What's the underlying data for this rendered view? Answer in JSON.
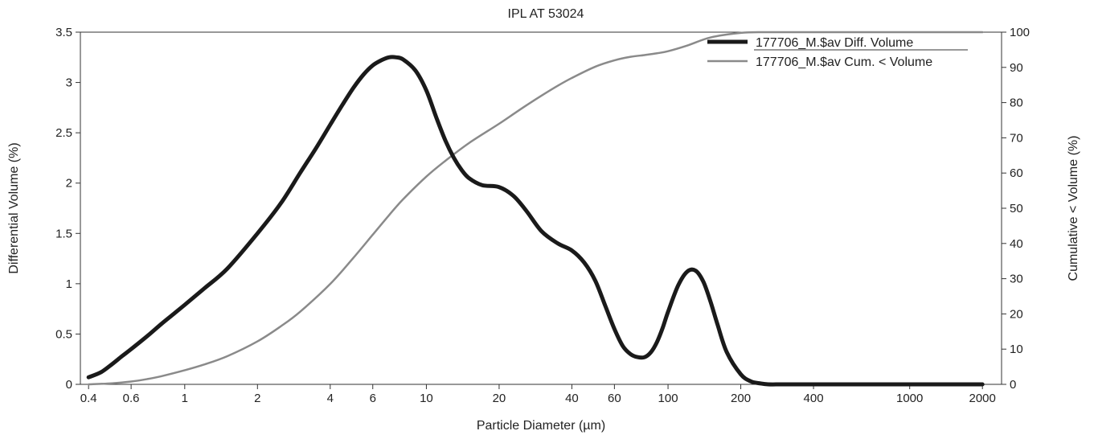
{
  "chart_data": {
    "type": "line",
    "title": "IPL AT 53024",
    "xlabel": "Particle Diameter (µm)",
    "ylabel": "Differential Volume (%)",
    "y2label": "Cumulative < Volume (%)",
    "xscale": "log",
    "xlim": [
      0.37,
      2400
    ],
    "ylim": [
      0,
      3.5
    ],
    "y2lim": [
      0,
      100
    ],
    "x_ticks": [
      0.4,
      0.6,
      1,
      2,
      4,
      6,
      10,
      20,
      40,
      60,
      100,
      200,
      400,
      1000,
      2000
    ],
    "x_tick_labels": [
      "0.4",
      "0.6",
      "1",
      "2",
      "4",
      "6",
      "10",
      "20",
      "40",
      "60",
      "100",
      "200",
      "400",
      "1000",
      "2000"
    ],
    "y_ticks": [
      0,
      0.5,
      1,
      1.5,
      2,
      2.5,
      3,
      3.5
    ],
    "y_tick_labels": [
      "0",
      "0.5",
      "1",
      "1.5",
      "2",
      "2.5",
      "3",
      "3.5"
    ],
    "y2_ticks": [
      0,
      10,
      20,
      30,
      40,
      50,
      60,
      70,
      80,
      90,
      100
    ],
    "y2_tick_labels": [
      "0",
      "10",
      "20",
      "30",
      "40",
      "50",
      "60",
      "70",
      "80",
      "90",
      "100"
    ],
    "legend_position": "top-right",
    "grid": false,
    "series": [
      {
        "name": "177706_M.$av Diff. Volume",
        "axis": "left",
        "color": "#1a1a1a",
        "x": [
          0.4,
          0.45,
          0.5,
          0.55,
          0.6,
          0.7,
          0.8,
          0.9,
          1.0,
          1.2,
          1.5,
          2.0,
          2.5,
          3.0,
          3.5,
          4.0,
          4.5,
          5.0,
          5.5,
          6.0,
          6.5,
          7.0,
          7.5,
          8.0,
          9.0,
          10.0,
          11.0,
          12.0,
          13.0,
          14.0,
          15.0,
          17.0,
          20.0,
          23.0,
          26.0,
          30.0,
          35.0,
          40.0,
          45.0,
          50.0,
          55.0,
          60.0,
          65.0,
          70.0,
          75.0,
          80.0,
          85.0,
          90.0,
          95.0,
          100.0,
          110.0,
          120.0,
          130.0,
          140.0,
          150.0,
          160.0,
          175.0,
          200.0,
          220.0,
          240.0,
          260.0,
          300.0,
          400.0,
          600.0,
          1000.0,
          1500.0,
          2000.0
        ],
        "values": [
          0.07,
          0.12,
          0.2,
          0.28,
          0.35,
          0.48,
          0.6,
          0.7,
          0.79,
          0.95,
          1.15,
          1.5,
          1.8,
          2.1,
          2.35,
          2.58,
          2.78,
          2.95,
          3.08,
          3.17,
          3.22,
          3.25,
          3.25,
          3.23,
          3.12,
          2.92,
          2.65,
          2.42,
          2.25,
          2.13,
          2.05,
          1.98,
          1.96,
          1.87,
          1.72,
          1.52,
          1.4,
          1.33,
          1.21,
          1.03,
          0.78,
          0.55,
          0.38,
          0.3,
          0.27,
          0.27,
          0.32,
          0.42,
          0.56,
          0.72,
          0.98,
          1.12,
          1.13,
          1.02,
          0.82,
          0.6,
          0.32,
          0.1,
          0.03,
          0.01,
          0.0,
          0.0,
          0.0,
          0.0,
          0.0,
          0.0,
          0.0
        ]
      },
      {
        "name": "177706_M.$av Cum. < Volume",
        "axis": "right",
        "color": "#8a8a8a",
        "x": [
          0.4,
          0.5,
          0.6,
          0.7,
          0.8,
          1.0,
          1.2,
          1.5,
          2.0,
          2.5,
          3.0,
          4.0,
          5.0,
          6.0,
          7.0,
          8.0,
          10.0,
          12.0,
          15.0,
          20.0,
          25.0,
          30.0,
          35.0,
          40.0,
          50.0,
          60.0,
          70.0,
          80.0,
          90.0,
          100.0,
          120.0,
          150.0,
          200.0,
          250.0,
          300.0,
          400.0,
          600.0,
          1000.0,
          2000.0
        ],
        "values": [
          0.0,
          0.3,
          0.8,
          1.5,
          2.3,
          4.0,
          5.6,
          8.0,
          12.2,
          16.5,
          20.6,
          28.5,
          36.0,
          42.5,
          48.0,
          52.5,
          59.0,
          63.5,
          68.5,
          74.0,
          78.5,
          82.0,
          84.8,
          87.0,
          90.2,
          92.0,
          93.0,
          93.5,
          94.0,
          94.6,
          96.2,
          98.5,
          99.8,
          100.0,
          100.0,
          100.0,
          100.0,
          100.0,
          100.0
        ]
      }
    ]
  }
}
